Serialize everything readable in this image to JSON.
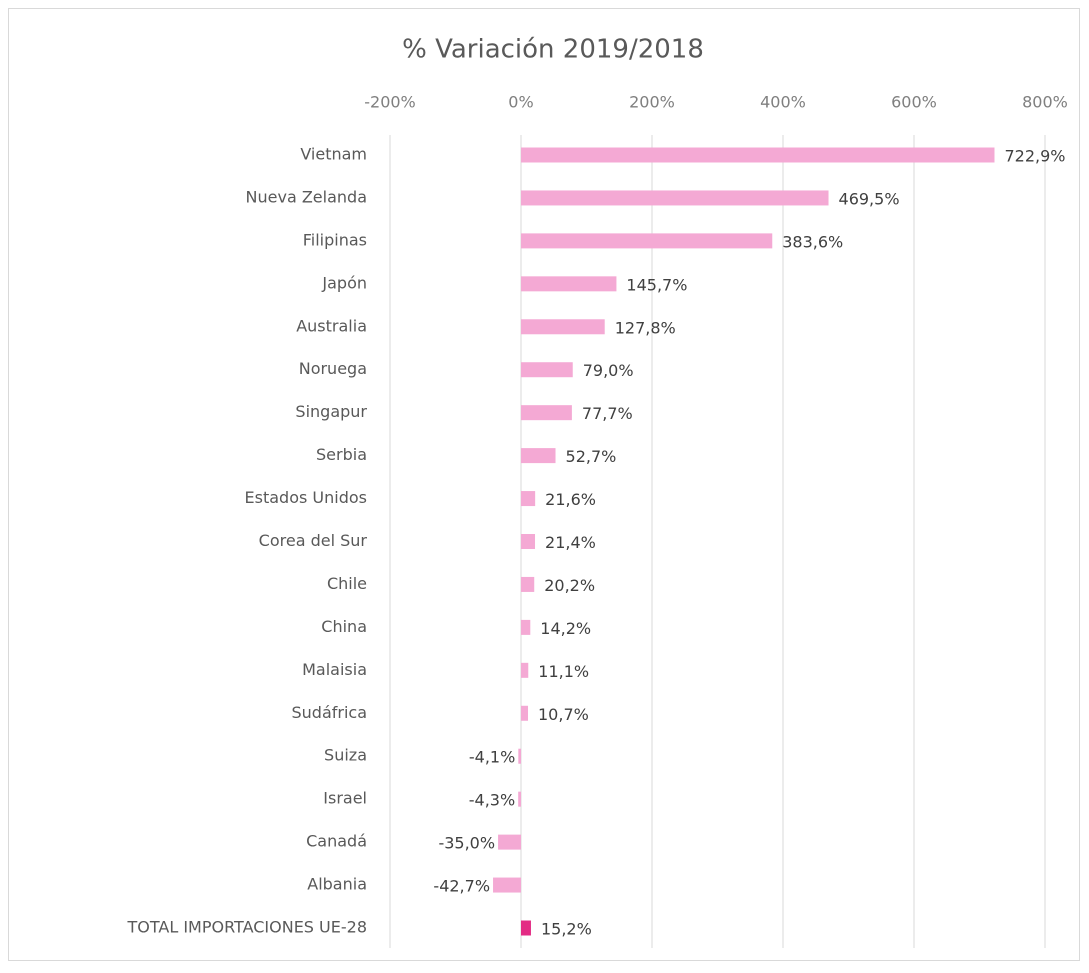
{
  "chart_data": {
    "type": "bar",
    "orientation": "horizontal",
    "title": "% Variación  2019/2018",
    "categories": [
      "Vietnam",
      "Nueva Zelanda",
      "Filipinas",
      "Japón",
      "Australia",
      "Noruega",
      "Singapur",
      "Serbia",
      "Estados Unidos",
      "Corea del Sur",
      "Chile",
      "China",
      "Malaisia",
      "Sudáfrica",
      "Suiza",
      "Israel",
      "Canadá",
      "Albania",
      "TOTAL IMPORTACIONES UE-28"
    ],
    "values": [
      722.9,
      469.5,
      383.6,
      145.7,
      127.8,
      79.0,
      77.7,
      52.7,
      21.6,
      21.4,
      20.2,
      14.2,
      11.1,
      10.7,
      -4.1,
      -4.3,
      -35.0,
      -42.7,
      15.2
    ],
    "value_labels": [
      "722,9%",
      "469,5%",
      "383,6%",
      "145,7%",
      "127,8%",
      "79,0%",
      "77,7%",
      "52,7%",
      "21,6%",
      "21,4%",
      "20,2%",
      "14,2%",
      "11,1%",
      "10,7%",
      "-4,1%",
      "-4,3%",
      "-35,0%",
      "-42,7%",
      "15,2%"
    ],
    "colors": [
      "#f4a9d4",
      "#f4a9d4",
      "#f4a9d4",
      "#f4a9d4",
      "#f4a9d4",
      "#f4a9d4",
      "#f4a9d4",
      "#f4a9d4",
      "#f4a9d4",
      "#f4a9d4",
      "#f4a9d4",
      "#f4a9d4",
      "#f4a9d4",
      "#f4a9d4",
      "#f4a9d4",
      "#f4a9d4",
      "#f4a9d4",
      "#f4a9d4",
      "#e32b84"
    ],
    "xlim": [
      -200,
      800
    ],
    "xticks": [
      {
        "value": -200,
        "label": "-200%"
      },
      {
        "value": 0,
        "label": "0%"
      },
      {
        "value": 200,
        "label": "200%"
      },
      {
        "value": 400,
        "label": "400%"
      },
      {
        "value": 600,
        "label": "600%"
      },
      {
        "value": 800,
        "label": "800%"
      }
    ],
    "grid": true
  }
}
